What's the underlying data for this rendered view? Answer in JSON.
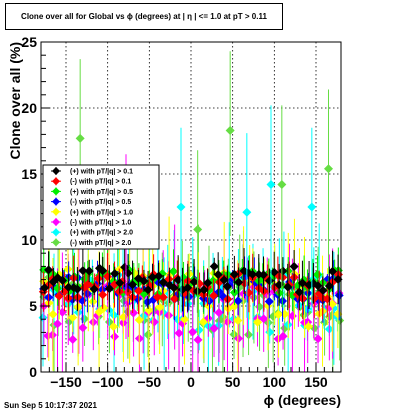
{
  "title": "Clone  over all for Global vs ϕ (degrees) at |  η | <= 1.0 at pT > 0.11",
  "footer": "Sun Sep  5 10:17:37 2021",
  "chart_data": {
    "type": "scatter",
    "xlabel": "ϕ (degrees)",
    "ylabel": "Clone  over all (%)",
    "xlim": [
      -180,
      180
    ],
    "ylim": [
      0,
      25
    ],
    "x_ticks": [
      -150,
      -100,
      -50,
      0,
      50,
      100,
      150
    ],
    "x_tick_labels": [
      "−150",
      "−100",
      "−50",
      "0",
      "50",
      "100",
      "150"
    ],
    "y_ticks": [
      0,
      5,
      10,
      15,
      20,
      25
    ],
    "y_tick_labels": [
      "0",
      "5",
      "10",
      "15",
      "20",
      "25"
    ],
    "grid": true,
    "legend_position": "left",
    "series": [
      {
        "name": "(+) with pT/|q| > 0.1",
        "color": "#000000",
        "marker": "diamond",
        "level": 7.0
      },
      {
        "name": "(-) with pT/|q| > 0.1",
        "color": "#ff0000",
        "marker": "diamond",
        "level": 6.5
      },
      {
        "name": "(+) with pT/|q| > 0.5",
        "color": "#00ee00",
        "marker": "diamond",
        "level": 6.8
      },
      {
        "name": "(-) with pT/|q| > 0.5",
        "color": "#0000ff",
        "marker": "diamond",
        "level": 6.3
      },
      {
        "name": "(+) with pT/|q| > 1.0",
        "color": "#ffff00",
        "marker": "diamond",
        "level": 5.6
      },
      {
        "name": "(-) with pT/|q| > 1.0",
        "color": "#ff00ff",
        "marker": "diamond",
        "level": 4.6
      },
      {
        "name": "(+) with pT/|q| > 2.0",
        "color": "#00ffff",
        "marker": "diamond",
        "level": 5.2
      },
      {
        "name": "(-) with pT/|q| > 2.0",
        "color": "#66dd44",
        "marker": "diamond",
        "level": 5.0
      }
    ],
    "highlights": [
      {
        "series": 7,
        "x": -133,
        "y": 17.7
      },
      {
        "series": 7,
        "x": 47,
        "y": 18.3
      },
      {
        "series": 7,
        "x": 165,
        "y": 15.4
      },
      {
        "series": 7,
        "x": 109,
        "y": 14.2
      },
      {
        "series": 6,
        "x": -12,
        "y": 12.5
      },
      {
        "series": 6,
        "x": 96,
        "y": 14.2
      },
      {
        "series": 6,
        "x": 145,
        "y": 12.5
      },
      {
        "series": 6,
        "x": 67,
        "y": 12.1
      },
      {
        "series": 7,
        "x": 8,
        "y": 10.8
      },
      {
        "series": 5,
        "x": -78,
        "y": 10.5
      }
    ]
  }
}
